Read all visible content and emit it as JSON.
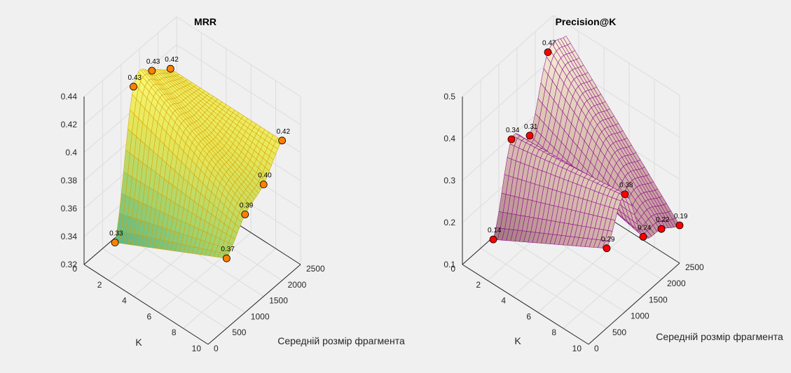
{
  "chart_data": [
    {
      "type": "surface",
      "title": "MRR",
      "xlabel": "K",
      "ylabel": "Середній розмір фрагмента",
      "zlabel": "",
      "xlim": [
        0,
        10
      ],
      "ylim": [
        0,
        2500
      ],
      "zlim": [
        0.32,
        0.44
      ],
      "xticks": [
        "0",
        "2",
        "4",
        "6",
        "8",
        "10"
      ],
      "yticks": [
        "0",
        "500",
        "1000",
        "1500",
        "2000",
        "2500"
      ],
      "zticks": [
        "0.32",
        "0.34",
        "0.36",
        "0.38",
        "0.4",
        "0.42",
        "0.44"
      ],
      "grid": true,
      "colormap": "viridis-light",
      "edge_color": "#d9a000",
      "marker_color": "#ff8000",
      "points": [
        {
          "k": 1,
          "size": 500,
          "value": 0.33,
          "label": "0.33"
        },
        {
          "k": 1,
          "size": 1000,
          "value": 0.43,
          "label": "0.43"
        },
        {
          "k": 1,
          "size": 1500,
          "value": 0.43,
          "label": "0.43"
        },
        {
          "k": 1,
          "size": 2000,
          "value": 0.42,
          "label": "0.42"
        },
        {
          "k": 10,
          "size": 500,
          "value": 0.37,
          "label": "0.37"
        },
        {
          "k": 10,
          "size": 1000,
          "value": 0.39,
          "label": "0.39"
        },
        {
          "k": 10,
          "size": 1500,
          "value": 0.4,
          "label": "0.40"
        },
        {
          "k": 10,
          "size": 2000,
          "value": 0.42,
          "label": "0.42"
        }
      ]
    },
    {
      "type": "surface",
      "title": "Precision@K",
      "xlabel": "K",
      "ylabel": "Середній розмір фрагмента",
      "zlabel": "",
      "xlim": [
        0,
        10
      ],
      "ylim": [
        0,
        2500
      ],
      "zlim": [
        0.1,
        0.5
      ],
      "xticks": [
        "0",
        "2",
        "4",
        "6",
        "8",
        "10"
      ],
      "yticks": [
        "0",
        "500",
        "1000",
        "1500",
        "2000",
        "2500"
      ],
      "zticks": [
        "0.1",
        "0.2",
        "0.3",
        "0.4",
        "0.5"
      ],
      "grid": true,
      "colormap": "pink",
      "edge_color": "#8b008b",
      "marker_color": "#ff0000",
      "points": [
        {
          "k": 1,
          "size": 500,
          "value": 0.14,
          "label": "0.14"
        },
        {
          "k": 1,
          "size": 1000,
          "value": 0.34,
          "label": "0.34"
        },
        {
          "k": 1,
          "size": 1500,
          "value": 0.31,
          "label": "0.31"
        },
        {
          "k": 1,
          "size": 2000,
          "value": 0.47,
          "label": "0.47"
        },
        {
          "k": 10,
          "size": 500,
          "value": 0.29,
          "label": "0.29"
        },
        {
          "k": 10,
          "size": 1000,
          "value": 0.38,
          "label": "0.38"
        },
        {
          "k": 10,
          "size": 1500,
          "value": 0.24,
          "label": "0.24"
        },
        {
          "k": 10,
          "size": 2000,
          "value": 0.22,
          "label": "0.22"
        },
        {
          "k": 10,
          "size": 2500,
          "value": 0.19,
          "label": "0.19"
        }
      ]
    }
  ]
}
